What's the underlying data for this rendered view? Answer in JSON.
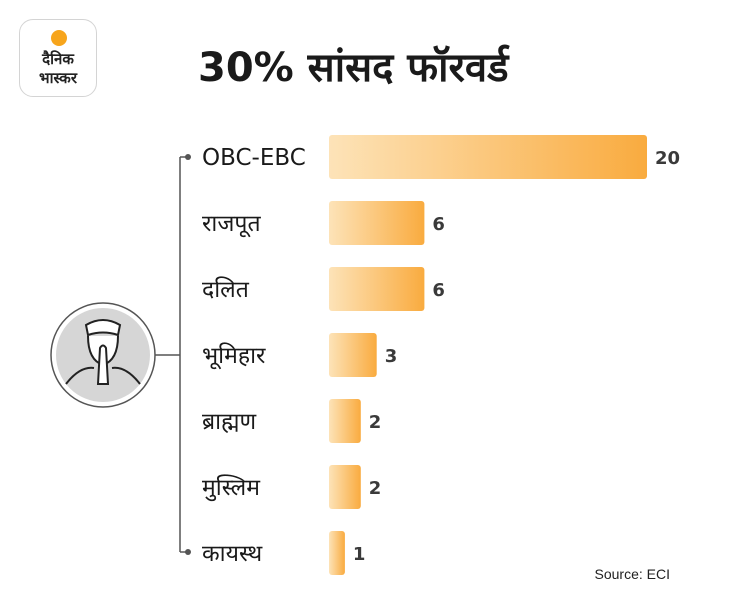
{
  "header": {
    "title": "30% सांसद फॉरवर्ड",
    "logo_line1": "दैनिक",
    "logo_line2": "भास्कर"
  },
  "source": "Source: ECI",
  "colors": {
    "bar_start": "#fde3b8",
    "bar_end": "#f9ab3f",
    "connector": "#555555"
  },
  "chart_data": {
    "type": "bar",
    "orientation": "horizontal",
    "title": "30% सांसद फॉरवर्ड",
    "categories": [
      "OBC-EBC",
      "राजपूत",
      "दलित",
      "भूमिहार",
      "ब्राह्मण",
      "मुस्लिम",
      "कायस्थ"
    ],
    "values": [
      20,
      6,
      6,
      3,
      2,
      2,
      1
    ],
    "xlim": [
      0,
      20
    ],
    "grid": false,
    "legend": "none"
  }
}
